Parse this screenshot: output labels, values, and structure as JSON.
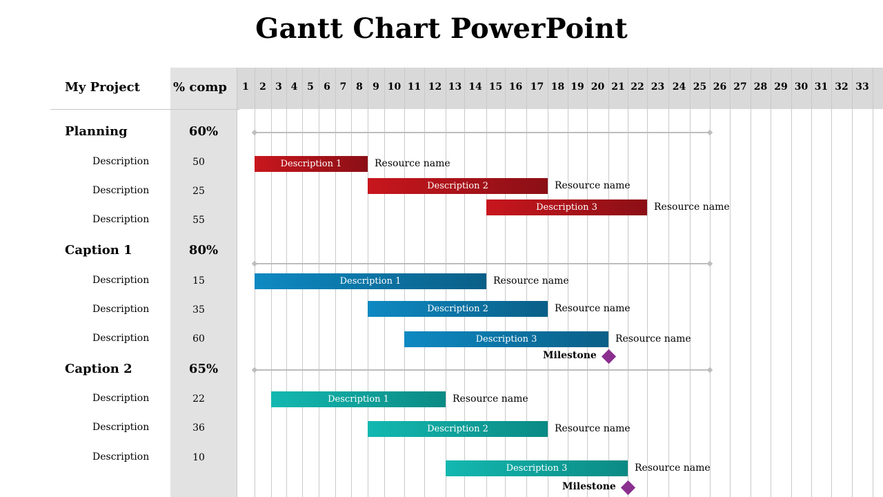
{
  "title": "Gantt Chart PowerPoint",
  "header": {
    "project_label": "My Project",
    "pct_label": "% comp",
    "days": [
      "1",
      "2",
      "3",
      "4",
      "5",
      "6",
      "7",
      "8",
      "9",
      "10",
      "11",
      "12",
      "13",
      "14",
      "15",
      "16",
      "17",
      "18",
      "19",
      "20",
      "21",
      "22",
      "23",
      "24",
      "25",
      "26",
      "27",
      "28",
      "29",
      "30",
      "31",
      "32",
      "33"
    ]
  },
  "sections": [
    {
      "title": "Planning",
      "pct": "60%",
      "summary": {
        "start": 1,
        "end": 25
      },
      "rows": [
        {
          "desc": "Description",
          "value": "50",
          "bar_label": "Description 1",
          "resource": "Resource name",
          "start": 1,
          "end": 8
        },
        {
          "desc": "Description",
          "value": "25",
          "bar_label": "Description 2",
          "resource": "Resource name",
          "start": 8,
          "end": 17
        },
        {
          "desc": "Description",
          "value": "55",
          "bar_label": "Description 3",
          "resource": "Resource name",
          "start": 14,
          "end": 22
        }
      ]
    },
    {
      "title": "Caption 1",
      "pct": "80%",
      "summary": {
        "start": 1,
        "end": 25
      },
      "rows": [
        {
          "desc": "Description",
          "value": "15",
          "bar_label": "Description 1",
          "resource": "Resource name",
          "start": 1,
          "end": 14
        },
        {
          "desc": "Description",
          "value": "35",
          "bar_label": "Description 2",
          "resource": "Resource name",
          "start": 8,
          "end": 17
        },
        {
          "desc": "Description",
          "value": "60",
          "bar_label": "Description 3",
          "resource": "Resource name",
          "start": 10,
          "end": 20
        }
      ],
      "milestone": {
        "label": "Milestone",
        "day": 20
      }
    },
    {
      "title": "Caption 2",
      "pct": "65%",
      "summary": {
        "start": 1,
        "end": 25
      },
      "rows": [
        {
          "desc": "Description",
          "value": "22",
          "bar_label": "Description 1",
          "resource": "Resource name",
          "start": 2,
          "end": 12
        },
        {
          "desc": "Description",
          "value": "36",
          "bar_label": "Description 2",
          "resource": "Resource name",
          "start": 8,
          "end": 17
        },
        {
          "desc": "Description",
          "value": "10",
          "bar_label": "Description 3",
          "resource": "Resource name",
          "start": 12,
          "end": 21
        }
      ],
      "milestone": {
        "label": "Milestone",
        "day": 21
      }
    }
  ]
}
